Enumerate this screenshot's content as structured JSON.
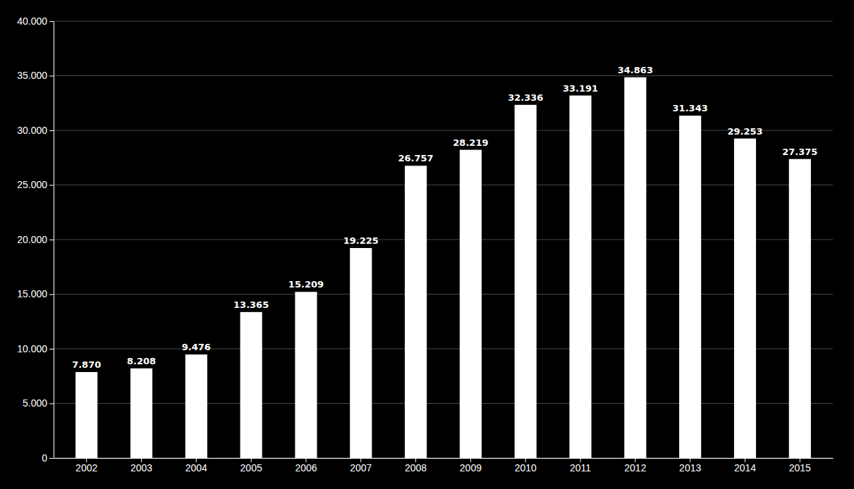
{
  "chart_data": {
    "type": "bar",
    "categories": [
      "2002",
      "2003",
      "2004",
      "2005",
      "2006",
      "2007",
      "2008",
      "2009",
      "2010",
      "2011",
      "2012",
      "2013",
      "2014",
      "2015"
    ],
    "values": [
      7870,
      8208,
      9476,
      13365,
      15209,
      19225,
      26757,
      28219,
      32336,
      33191,
      34863,
      31343,
      29253,
      27375
    ],
    "value_labels": [
      "7.870",
      "8.208",
      "9.476",
      "13.365",
      "15.209",
      "19.225",
      "26.757",
      "28.219",
      "32.336",
      "33.191",
      "34.863",
      "31.343",
      "29.253",
      "27.375"
    ],
    "data_labels": true,
    "color": "#ffffff",
    "ylim": [
      0,
      40000
    ],
    "yticks": [
      0,
      {
        "value": 5000,
        "label": "5.000"
      },
      {
        "value": 10000,
        "label": "10.000"
      },
      {
        "value": 15000,
        "label": "15.000"
      },
      {
        "value": 20000,
        "label": "20.000"
      },
      {
        "value": 25000,
        "label": "25.000"
      },
      {
        "value": 30000,
        "label": "30.000"
      },
      {
        "value": 35000,
        "label": "35.000"
      },
      {
        "value": 40000,
        "label": "40.000"
      }
    ],
    "grid": true
  }
}
